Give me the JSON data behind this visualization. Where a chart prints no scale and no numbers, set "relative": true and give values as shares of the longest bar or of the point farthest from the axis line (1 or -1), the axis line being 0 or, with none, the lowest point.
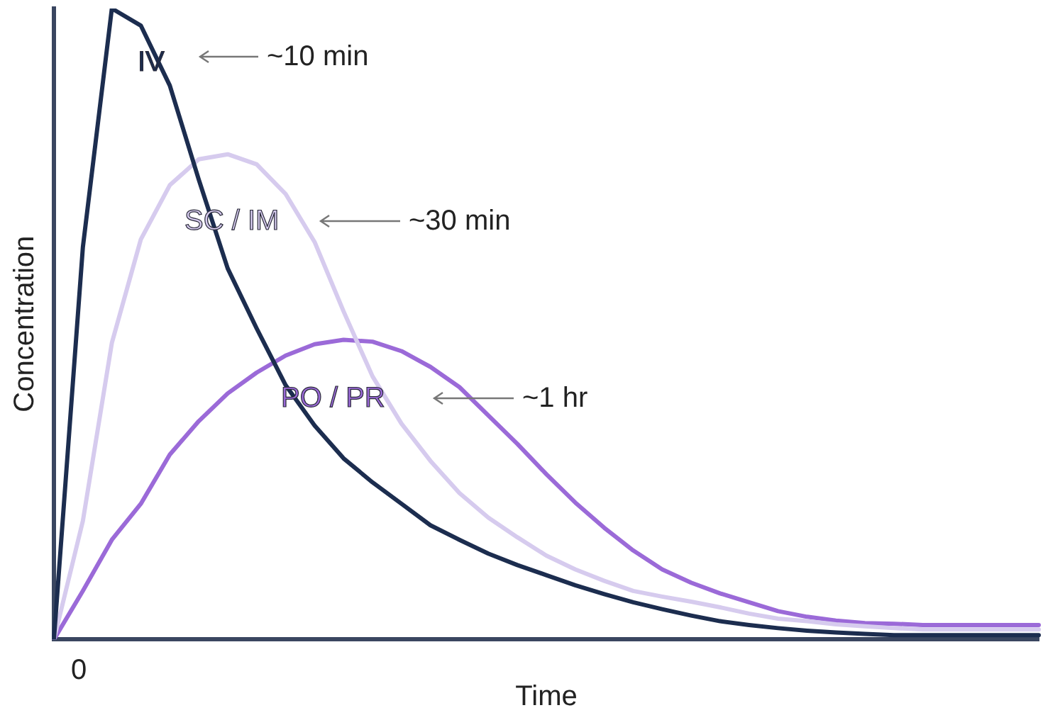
{
  "chart_data": {
    "type": "line",
    "relative": true,
    "xlabel": "Time",
    "ylabel": "Concentration",
    "legend": false,
    "marker": "none",
    "line_style": "solid",
    "annotations": [
      "~10 min",
      "~30 min",
      "~1 hr",
      "0"
    ],
    "categories": [
      null,
      null,
      null,
      null,
      null,
      null,
      null,
      null,
      null,
      null,
      null,
      null,
      null,
      null,
      null,
      null,
      null,
      null,
      null,
      null,
      null,
      null,
      null,
      null,
      null,
      null,
      null,
      null,
      null,
      null,
      null,
      null,
      null,
      null,
      null
    ],
    "series": [
      {
        "name": "IV",
        "color": "#1c2d4f",
        "values": [
          0,
          0.622,
          1,
          0.973,
          0.878,
          0.729,
          0.588,
          0.493,
          0.403,
          0.339,
          0.287,
          0.249,
          0.215,
          0.181,
          0.158,
          0.136,
          0.118,
          0.102,
          0.086,
          0.072,
          0.059,
          0.048,
          0.038,
          0.029,
          0.023,
          0.018,
          0.014,
          0.011,
          0.009,
          0.007,
          0.007,
          0.007,
          0.007,
          0.007,
          0.007
        ]
      },
      {
        "name": "SC / IM",
        "color": "#d6cbee",
        "values": [
          0,
          0.188,
          0.47,
          0.634,
          0.72,
          0.761,
          0.769,
          0.753,
          0.706,
          0.63,
          0.52,
          0.417,
          0.342,
          0.283,
          0.232,
          0.193,
          0.162,
          0.133,
          0.111,
          0.093,
          0.077,
          0.068,
          0.06,
          0.051,
          0.041,
          0.033,
          0.029,
          0.024,
          0.021,
          0.018,
          0.016,
          0.016,
          0.016,
          0.016,
          0.016
        ]
      },
      {
        "name": "PO / PR",
        "color": "#9b6ad8",
        "values": [
          0,
          0.077,
          0.158,
          0.215,
          0.293,
          0.346,
          0.39,
          0.423,
          0.45,
          0.468,
          0.475,
          0.472,
          0.457,
          0.432,
          0.4,
          0.355,
          0.31,
          0.262,
          0.217,
          0.177,
          0.141,
          0.111,
          0.09,
          0.073,
          0.059,
          0.045,
          0.036,
          0.03,
          0.026,
          0.025,
          0.023,
          0.023,
          0.023,
          0.023,
          0.023
        ]
      }
    ]
  }
}
